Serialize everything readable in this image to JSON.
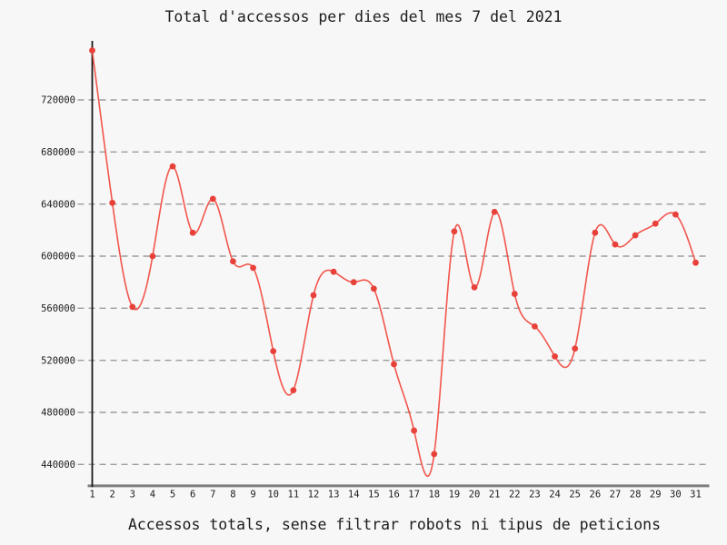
{
  "chart": {
    "title": "Total d'accessos per dies del mes 7 del 2021",
    "caption": "Accessos totals, sense filtrar robots ni tipus de peticions"
  },
  "chart_data": {
    "type": "line",
    "title": "Total d'accessos per dies del mes 7 del 2021",
    "xlabel": "Accessos totals, sense filtrar robots ni tipus de peticions",
    "ylabel": "",
    "categories": [
      "1",
      "2",
      "3",
      "4",
      "5",
      "6",
      "7",
      "8",
      "9",
      "10",
      "11",
      "12",
      "13",
      "14",
      "15",
      "16",
      "17",
      "18",
      "19",
      "20",
      "21",
      "22",
      "23",
      "24",
      "25",
      "26",
      "27",
      "28",
      "29",
      "30",
      "31"
    ],
    "values": [
      758000,
      641000,
      561000,
      600000,
      669000,
      618000,
      644000,
      596000,
      591000,
      527000,
      497000,
      570000,
      588000,
      580000,
      575000,
      517000,
      466000,
      448000,
      619000,
      576000,
      634000,
      571000,
      546000,
      523000,
      529000,
      618000,
      609000,
      616000,
      625000,
      632000,
      595000
    ],
    "y_ticks": [
      720000,
      680000,
      640000,
      600000,
      560000,
      520000,
      480000,
      440000
    ],
    "ylim": [
      423000,
      766000
    ],
    "xlim": [
      1,
      31
    ],
    "grid": "horizontal-dashed",
    "legend": "none",
    "interpolation": "cubic",
    "marker": "circle"
  },
  "colors": {
    "background": "#f7f7f7",
    "line": "#f2564c",
    "marker": "#e8413a",
    "grid": "#9c9c9c",
    "y_axis": "#1a1a1a",
    "x_axis": "#7e7e7e",
    "text": "#1c1c1c"
  }
}
